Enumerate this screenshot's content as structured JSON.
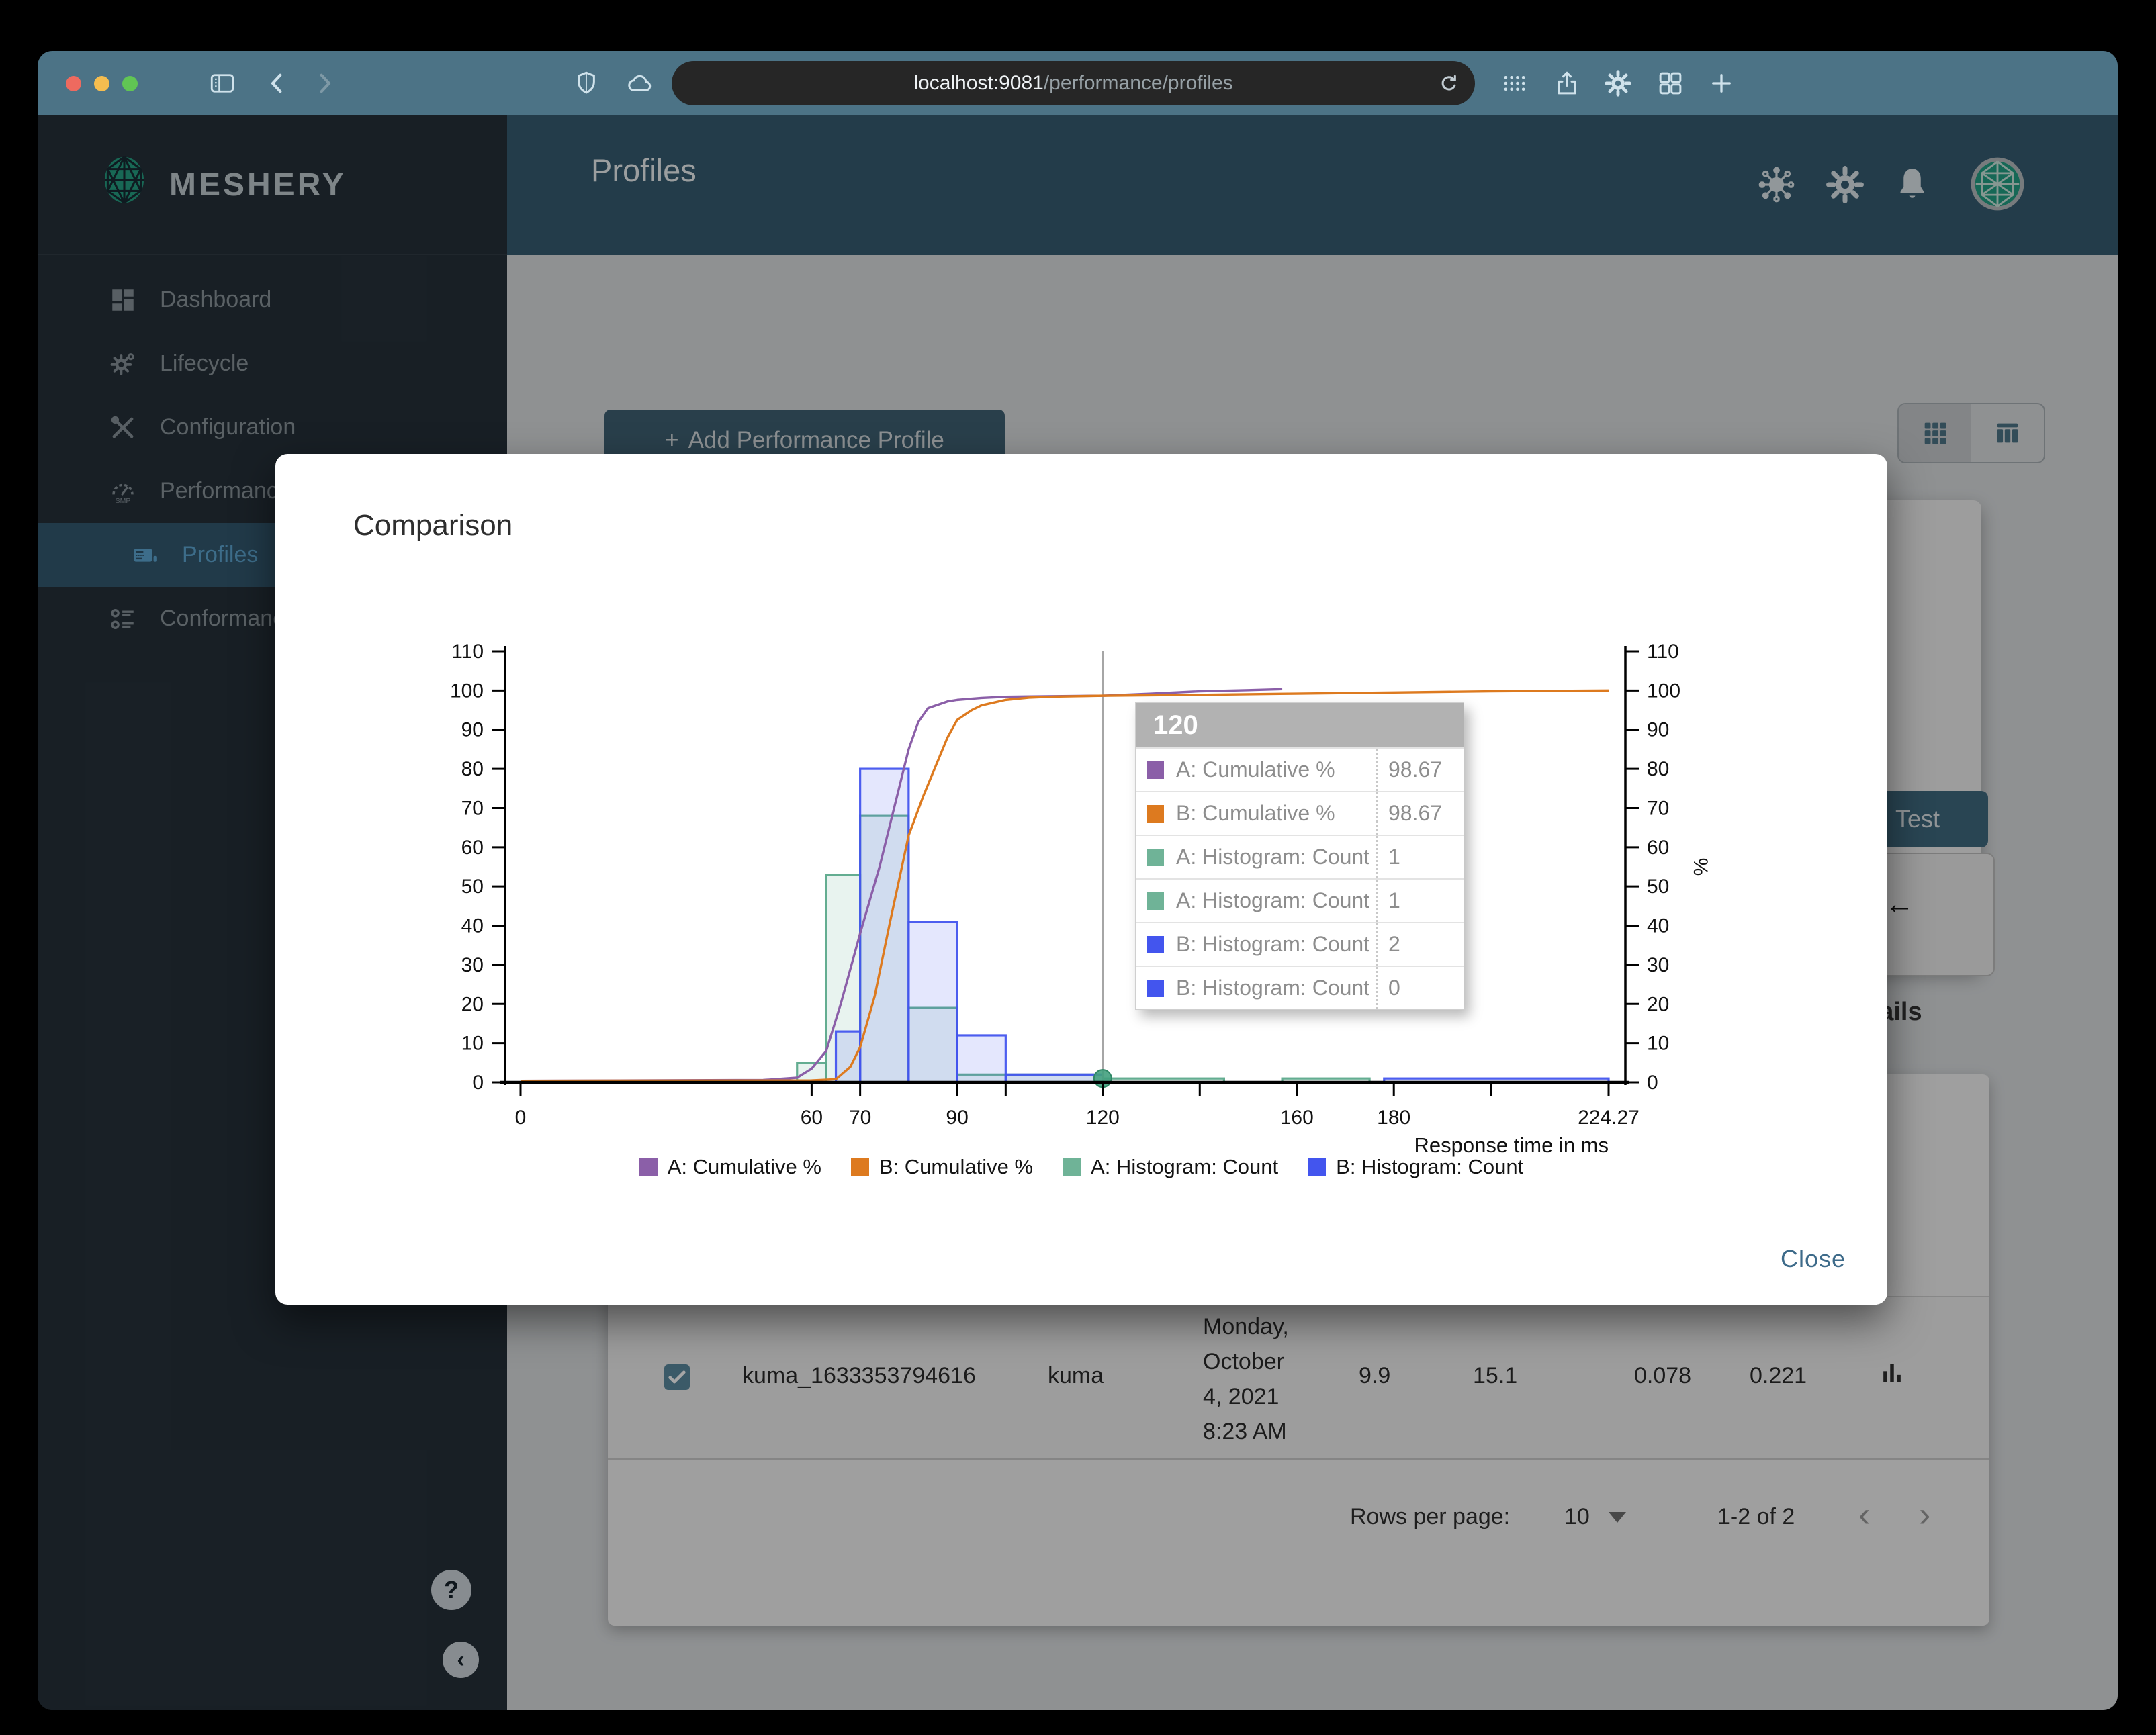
{
  "browser": {
    "url_host": "localhost:9081",
    "url_path": "/performance/profiles"
  },
  "sidebar": {
    "brand": "MESHERY",
    "items": [
      {
        "label": "Dashboard",
        "icon": "dashboard-icon",
        "active": false,
        "sub": false
      },
      {
        "label": "Lifecycle",
        "icon": "lifecycle-icon",
        "active": false,
        "sub": false
      },
      {
        "label": "Configuration",
        "icon": "configuration-icon",
        "active": false,
        "sub": false
      },
      {
        "label": "Performance",
        "icon": "performance-icon",
        "active": false,
        "sub": false
      },
      {
        "label": "Profiles",
        "icon": "profiles-icon",
        "active": true,
        "sub": true
      },
      {
        "label": "Conformance",
        "icon": "conformance-icon",
        "active": false,
        "sub": false
      }
    ]
  },
  "header": {
    "title": "Profiles"
  },
  "page": {
    "plus_glyph": "+",
    "add_profile_button": "Add Performance Profile",
    "test_button": "Test",
    "back_arrow_glyph": "←",
    "details_heading": "Details",
    "table_row": {
      "name": "kuma_1633353794616",
      "mesh": "kuma",
      "date_lines": [
        "Monday,",
        "October",
        "4, 2021",
        "8:23 AM"
      ],
      "qps": "9.9",
      "duration": "15.1",
      "p50": "0.078",
      "p99": "0.221"
    },
    "pagination": {
      "label": "Rows per page:",
      "value": "10",
      "range": "1-2 of 2",
      "prev_glyph": "‹",
      "next_glyph": "›"
    }
  },
  "modal": {
    "title": "Comparison",
    "close_label": "Close"
  },
  "tooltip": {
    "header": "120",
    "rows": [
      {
        "swatch": "#8b5fa8",
        "label": "A: Cumulative %",
        "value": "98.67"
      },
      {
        "swatch": "#dd7a1f",
        "label": "B: Cumulative %",
        "value": "98.67"
      },
      {
        "swatch": "#6fb397",
        "label": "A: Histogram: Count",
        "value": "1"
      },
      {
        "swatch": "#6fb397",
        "label": "A: Histogram: Count",
        "value": "1"
      },
      {
        "swatch": "#4355ee",
        "label": "B: Histogram: Count",
        "value": "2"
      },
      {
        "swatch": "#4355ee",
        "label": "B: Histogram: Count",
        "value": "0"
      }
    ]
  },
  "chart_data": {
    "type": "histogram+cumulative-line",
    "title": "",
    "xlabel": "Response time in ms",
    "ylabel_right": "%",
    "xlim": [
      0,
      224.27
    ],
    "ylim": [
      0,
      110
    ],
    "yticks": [
      0,
      10,
      20,
      30,
      40,
      50,
      60,
      70,
      80,
      90,
      100,
      110
    ],
    "xticks_labeled": [
      0,
      60,
      70,
      90,
      120,
      160,
      180,
      224.27
    ],
    "xticks_unlabeled": [
      100,
      140,
      200
    ],
    "grid": false,
    "crosshair_x": 120,
    "marker": {
      "x": 120,
      "y": 1,
      "color": "#43a07e"
    },
    "series": [
      {
        "name": "A: Histogram: Count",
        "type": "bars",
        "color": "#5ca98b",
        "bins": [
          [
            57,
            63,
            5
          ],
          [
            63,
            70,
            53
          ],
          [
            70,
            80,
            68
          ],
          [
            80,
            90,
            19
          ],
          [
            90,
            120,
            2
          ],
          [
            120,
            145,
            1
          ],
          [
            157,
            175,
            1
          ]
        ]
      },
      {
        "name": "B: Histogram: Count",
        "type": "bars",
        "color": "#4355ee",
        "bins": [
          [
            65,
            70,
            13
          ],
          [
            70,
            80,
            80
          ],
          [
            80,
            90,
            41
          ],
          [
            90,
            100,
            12
          ],
          [
            100,
            120,
            2
          ],
          [
            178,
            224.27,
            1
          ]
        ]
      },
      {
        "name": "A: Cumulative %",
        "type": "line",
        "color": "#8b5fa8",
        "points": [
          [
            0,
            0.4
          ],
          [
            50,
            0.6
          ],
          [
            57,
            1.2
          ],
          [
            60,
            3.5
          ],
          [
            63,
            8
          ],
          [
            66,
            20
          ],
          [
            70,
            38
          ],
          [
            74,
            55
          ],
          [
            78,
            75
          ],
          [
            80,
            85
          ],
          [
            82,
            92
          ],
          [
            84,
            95.5
          ],
          [
            88,
            97.2
          ],
          [
            90,
            97.6
          ],
          [
            95,
            98.1
          ],
          [
            100,
            98.4
          ],
          [
            110,
            98.55
          ],
          [
            120,
            98.67
          ],
          [
            130,
            99.2
          ],
          [
            140,
            99.8
          ],
          [
            150,
            100.1
          ],
          [
            157,
            100.35
          ]
        ]
      },
      {
        "name": "B: Cumulative %",
        "type": "line",
        "color": "#dd7a1f",
        "points": [
          [
            0,
            0.4
          ],
          [
            60,
            0.5
          ],
          [
            65,
            0.8
          ],
          [
            68,
            4
          ],
          [
            70,
            9
          ],
          [
            73,
            22
          ],
          [
            76,
            40
          ],
          [
            80,
            63
          ],
          [
            83,
            73
          ],
          [
            85,
            79
          ],
          [
            88,
            88
          ],
          [
            90,
            92.5
          ],
          [
            93,
            95
          ],
          [
            95,
            96.2
          ],
          [
            100,
            97.6
          ],
          [
            105,
            98.2
          ],
          [
            110,
            98.45
          ],
          [
            120,
            98.67
          ],
          [
            140,
            98.9
          ],
          [
            160,
            99.2
          ],
          [
            180,
            99.5
          ],
          [
            200,
            99.8
          ],
          [
            224.27,
            100
          ]
        ]
      }
    ],
    "legend": [
      {
        "label": "A: Cumulative %",
        "color": "#8b5fa8"
      },
      {
        "label": "B: Cumulative %",
        "color": "#dd7a1f"
      },
      {
        "label": "A: Histogram: Count",
        "color": "#6fb397"
      },
      {
        "label": "B: Histogram: Count",
        "color": "#4355ee"
      }
    ],
    "legend_position": "bottom"
  }
}
